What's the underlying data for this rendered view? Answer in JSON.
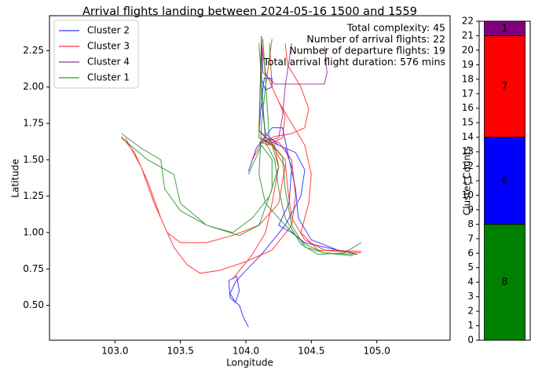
{
  "chart_data": [
    {
      "type": "line",
      "title": "Arrival flights landing between 2024-05-16 1500 and 1559",
      "xlabel": "Longitude",
      "ylabel": "Latitude",
      "xlim": [
        102.5,
        105.56
      ],
      "ylim": [
        0.26,
        2.49
      ],
      "xticks": [
        {
          "value": 103,
          "label": "103.0"
        },
        103.5,
        {
          "value": 104,
          "label": "104.0"
        },
        104.5,
        {
          "value": 105,
          "label": "105.0"
        }
      ],
      "yticks": [
        {
          "value": 0.5,
          "label": "0.50"
        },
        0.75,
        {
          "value": 1,
          "label": "1.00"
        },
        1.25,
        {
          "value": 1.5,
          "label": "1.50"
        },
        1.75,
        {
          "value": 2,
          "label": "2.00"
        },
        2.25
      ],
      "legend": "upper left",
      "annotations": [
        "Total complexity: 45",
        "Number of arrival flights: 22",
        "Number of departure flights: 19",
        "Total arrival flight duration: 576 mins"
      ],
      "series": [
        {
          "name": "Cluster 2",
          "color": "#0000ff",
          "x": [
            104.12,
            104.12,
            104.15,
            104.25,
            104.38,
            104.45,
            104.42,
            104.3,
            104.12,
            103.98,
            103.92,
            103.88,
            103.92,
            103.95,
            103.93,
            103.87,
            103.88,
            103.95,
            103.98,
            104.02,
            null,
            104.12,
            104.12,
            104.15,
            104.2,
            104.2,
            104.14,
            104.12,
            104.1,
            104.2,
            104.3,
            104.35,
            104.33,
            104.25,
            104.35,
            104.45,
            104.6,
            104.85,
            null,
            104.02,
            104.08,
            104.2,
            104.28,
            104.32,
            104.38,
            104.4,
            104.5,
            104.7
          ],
          "y": [
            2.35,
            1.9,
            1.68,
            1.6,
            1.55,
            1.43,
            1.25,
            1.05,
            0.85,
            0.72,
            0.66,
            0.58,
            0.52,
            0.6,
            0.7,
            0.67,
            0.55,
            0.5,
            0.42,
            0.35,
            null,
            2.3,
            2.05,
            1.98,
            2.0,
            2.06,
            2.06,
            1.9,
            1.7,
            1.62,
            1.58,
            1.45,
            1.2,
            1.05,
            1.0,
            0.93,
            0.9,
            0.85,
            null,
            1.42,
            1.58,
            1.72,
            1.72,
            1.55,
            1.3,
            1.1,
            0.95,
            0.88
          ]
        },
        {
          "name": "Cluster 3",
          "color": "#ff0000",
          "x": [
            103.05,
            103.15,
            103.25,
            103.35,
            103.45,
            103.55,
            103.65,
            103.8,
            104.0,
            104.2,
            104.35,
            104.38,
            104.35,
            104.25,
            104.15,
            104.1,
            104.12,
            null,
            103.08,
            103.2,
            103.3,
            103.4,
            103.5,
            103.7,
            103.9,
            104.1,
            104.25,
            104.3,
            104.2,
            104.1,
            null,
            104.88,
            104.6,
            104.45,
            104.35,
            104.32,
            104.3,
            104.2,
            104.12,
            null,
            104.12,
            104.15,
            104.25,
            104.35,
            104.45,
            104.5,
            104.48,
            104.42,
            104.55,
            104.88,
            null,
            104.3,
            104.32,
            104.42,
            104.48,
            104.45,
            104.35,
            104.22,
            104.12,
            104.05,
            null,
            103.9,
            104.05,
            104.15,
            104.2,
            104.25,
            104.22,
            104.12,
            null,
            104.18,
            104.2,
            104.3,
            104.28,
            104.15
          ],
          "y": [
            1.66,
            1.55,
            1.35,
            1.1,
            0.9,
            0.78,
            0.72,
            0.74,
            0.8,
            0.88,
            1.05,
            1.25,
            1.5,
            1.62,
            1.65,
            1.7,
            2.35,
            null,
            1.65,
            1.45,
            1.2,
            1.0,
            0.93,
            0.93,
            0.98,
            1.05,
            1.2,
            1.45,
            1.6,
            1.62,
            null,
            0.87,
            0.88,
            0.95,
            1.1,
            1.3,
            1.5,
            1.6,
            1.65,
            null,
            2.3,
            2.1,
            1.9,
            1.75,
            1.6,
            1.4,
            1.2,
            1.0,
            0.88,
            0.86,
            null,
            2.3,
            2.15,
            2.0,
            1.85,
            1.72,
            1.68,
            1.66,
            1.62,
            1.5,
            null,
            0.68,
            0.85,
            1.0,
            1.2,
            1.45,
            1.6,
            1.65,
            null,
            2.3,
            2.0,
            1.8,
            1.65,
            1.6
          ]
        },
        {
          "name": "Cluster 4",
          "color": "#800080",
          "x": [
            104.12,
            104.13,
            104.22,
            104.6,
            104.62,
            104.6,
            null,
            104.35,
            104.3,
            104.28,
            104.25,
            104.12
          ],
          "y": [
            2.33,
            2.1,
            2.02,
            2.02,
            2.1,
            2.28,
            null,
            2.3,
            2.0,
            1.8,
            1.65,
            1.62
          ]
        },
        {
          "name": "Cluster 1",
          "color": "#008000",
          "x": [
            103.05,
            103.2,
            103.35,
            103.38,
            103.5,
            103.7,
            103.9,
            104.05,
            104.18,
            104.25,
            104.2,
            104.1,
            104.12,
            null,
            103.05,
            103.25,
            103.45,
            103.5,
            103.7,
            103.95,
            104.1,
            104.2,
            104.2,
            104.12,
            104.02,
            null,
            104.88,
            104.75,
            104.55,
            104.42,
            104.3,
            104.25,
            104.22,
            104.15,
            104.1,
            null,
            104.85,
            104.6,
            104.45,
            104.35,
            104.3,
            104.28,
            104.18,
            104.13,
            null,
            104.2,
            104.15,
            104.12,
            104.1,
            104.15,
            104.3,
            104.45,
            104.6,
            104.82
          ],
          "y": [
            1.68,
            1.58,
            1.5,
            1.3,
            1.15,
            1.05,
            1.0,
            1.1,
            1.25,
            1.45,
            1.6,
            1.65,
            2.35,
            null,
            1.65,
            1.5,
            1.4,
            1.2,
            1.05,
            0.98,
            1.05,
            1.3,
            1.5,
            1.6,
            1.4,
            null,
            0.93,
            0.86,
            0.85,
            0.92,
            1.1,
            1.3,
            1.5,
            1.62,
            2.3,
            null,
            0.85,
            0.86,
            0.9,
            1.05,
            1.3,
            1.52,
            1.63,
            2.33,
            null,
            2.33,
            2.0,
            1.75,
            1.4,
            1.2,
            1.05,
            0.92,
            0.86,
            0.84
          ]
        }
      ]
    },
    {
      "type": "bar",
      "ylabel": "Cluster Counts",
      "categories": [
        null
      ],
      "ylim": [
        0,
        22
      ],
      "yticks": [
        0,
        1,
        2,
        3,
        4,
        5,
        6,
        7,
        8,
        9,
        10,
        11,
        12,
        13,
        14,
        15,
        16,
        17,
        18,
        19,
        20,
        21,
        22
      ],
      "series": [
        {
          "color": "#008000",
          "values": [
            8
          ]
        },
        {
          "color": "#0000ff",
          "values": [
            6
          ]
        },
        {
          "color": "#ff0000",
          "values": [
            7
          ]
        },
        {
          "color": "#800080",
          "values": [
            1
          ]
        }
      ]
    }
  ]
}
